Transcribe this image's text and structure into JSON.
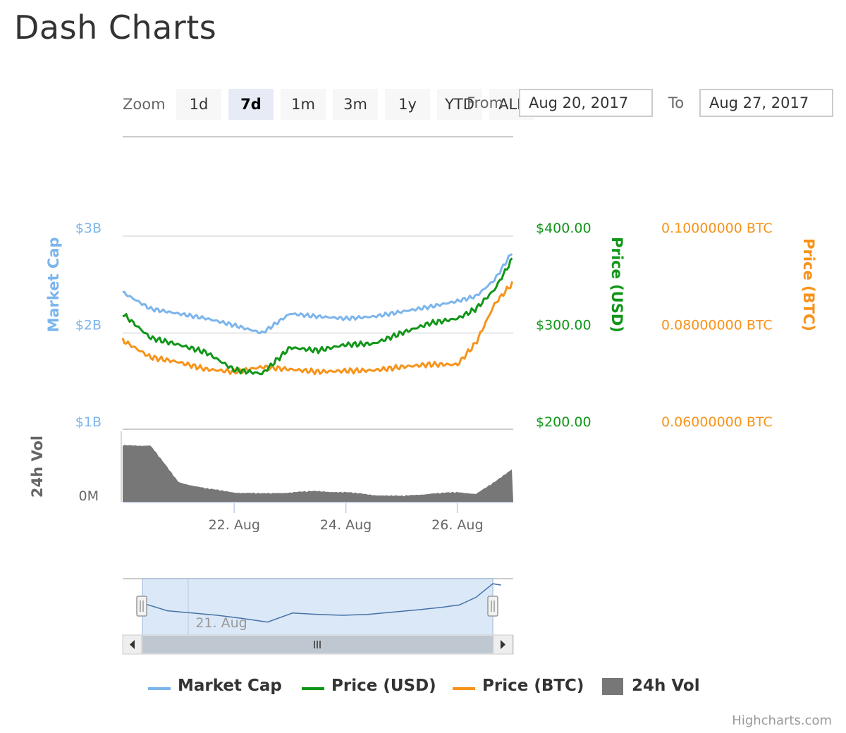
{
  "page": {
    "title": "Dash Charts"
  },
  "range_selector": {
    "zoom_label": "Zoom",
    "buttons": [
      {
        "label": "1d",
        "active": false
      },
      {
        "label": "7d",
        "active": true
      },
      {
        "label": "1m",
        "active": false
      },
      {
        "label": "3m",
        "active": false
      },
      {
        "label": "1y",
        "active": false
      },
      {
        "label": "YTD",
        "active": false
      },
      {
        "label": "ALL",
        "active": false
      }
    ],
    "from_label": "From",
    "from_value": "Aug 20, 2017",
    "to_label": "To",
    "to_value": "Aug 27, 2017"
  },
  "credits": "Highcharts.com",
  "colors": {
    "market_cap": "#7cb5ec",
    "price_usd": "#109618",
    "price_btc": "#f7931a",
    "volume": "#777777",
    "navigator_fill": "#dbe8f7",
    "navigator_line": "#4572a7"
  },
  "chart_data": {
    "type": "line",
    "x_range": [
      "2017-08-20",
      "2017-08-27"
    ],
    "x_ticks": [
      {
        "date": "2017-08-22",
        "label": "22. Aug"
      },
      {
        "date": "2017-08-24",
        "label": "24. Aug"
      },
      {
        "date": "2017-08-26",
        "label": "26. Aug"
      }
    ],
    "y_axes": [
      {
        "id": "market_cap",
        "title": "Market Cap",
        "ticks": [
          "$3B",
          "$2B",
          "$1B"
        ],
        "range": [
          1000000000,
          3000000000
        ]
      },
      {
        "id": "price_usd",
        "title": "Price (USD)",
        "ticks": [
          "$400.00",
          "$300.00",
          "$200.00"
        ],
        "range": [
          200,
          400
        ]
      },
      {
        "id": "price_btc",
        "title": "Price (BTC)",
        "ticks": [
          "0.10000000 BTC",
          "0.08000000 BTC",
          "0.06000000 BTC"
        ],
        "range": [
          0.06,
          0.1
        ]
      },
      {
        "id": "volume",
        "title": "24h Vol",
        "ticks": [
          "0M"
        ]
      }
    ],
    "series": [
      {
        "name": "Market Cap",
        "axis": "market_cap",
        "x": [
          "2017-08-20",
          "2017-08-20 12:00",
          "2017-08-21",
          "2017-08-21 12:00",
          "2017-08-22",
          "2017-08-22 12:00",
          "2017-08-23",
          "2017-08-23 12:00",
          "2017-08-24",
          "2017-08-24 12:00",
          "2017-08-25",
          "2017-08-25 12:00",
          "2017-08-26",
          "2017-08-26 08:00",
          "2017-08-26 16:00",
          "2017-08-27",
          "2017-08-27 04:00"
        ],
        "values": [
          2420000000,
          2250000000,
          2200000000,
          2150000000,
          2080000000,
          2000000000,
          2200000000,
          2170000000,
          2150000000,
          2170000000,
          2220000000,
          2270000000,
          2330000000,
          2380000000,
          2550000000,
          2850000000,
          2820000000
        ]
      },
      {
        "name": "Price (USD)",
        "axis": "price_usd",
        "x": [
          "2017-08-20",
          "2017-08-20 12:00",
          "2017-08-21",
          "2017-08-21 12:00",
          "2017-08-22",
          "2017-08-22 12:00",
          "2017-08-23",
          "2017-08-23 12:00",
          "2017-08-24",
          "2017-08-24 12:00",
          "2017-08-25",
          "2017-08-25 12:00",
          "2017-08-26",
          "2017-08-26 08:00",
          "2017-08-26 16:00",
          "2017-08-27",
          "2017-08-27 04:00"
        ],
        "values": [
          320,
          295,
          288,
          280,
          262,
          258,
          285,
          282,
          288,
          289,
          300,
          310,
          315,
          325,
          345,
          378,
          374
        ]
      },
      {
        "name": "Price (BTC)",
        "axis": "price_btc",
        "x": [
          "2017-08-20",
          "2017-08-20 12:00",
          "2017-08-21",
          "2017-08-21 12:00",
          "2017-08-22",
          "2017-08-22 12:00",
          "2017-08-23",
          "2017-08-23 12:00",
          "2017-08-24",
          "2017-08-24 12:00",
          "2017-08-25",
          "2017-08-25 12:00",
          "2017-08-26",
          "2017-08-26 08:00",
          "2017-08-26 16:00",
          "2017-08-27",
          "2017-08-27 04:00"
        ],
        "values": [
          0.0785,
          0.075,
          0.074,
          0.0725,
          0.072,
          0.073,
          0.0725,
          0.072,
          0.0722,
          0.0723,
          0.073,
          0.0735,
          0.0735,
          0.078,
          0.086,
          0.0905,
          0.0895
        ]
      },
      {
        "name": "24h Vol",
        "axis": "volume",
        "x": [
          "2017-08-20",
          "2017-08-20 12:00",
          "2017-08-21",
          "2017-08-21 12:00",
          "2017-08-22",
          "2017-08-22 12:00",
          "2017-08-23",
          "2017-08-23 12:00",
          "2017-08-24",
          "2017-08-24 12:00",
          "2017-08-25",
          "2017-08-25 12:00",
          "2017-08-26",
          "2017-08-26 08:00",
          "2017-08-26 16:00",
          "2017-08-27",
          "2017-08-27 04:00"
        ],
        "values": [
          0.88,
          0.88,
          0.3,
          0.2,
          0.14,
          0.12,
          0.14,
          0.16,
          0.14,
          0.1,
          0.08,
          0.12,
          0.14,
          0.12,
          0.3,
          0.52,
          0.62
        ]
      }
    ],
    "navigator_ticks": [
      {
        "date": "2017-08-21",
        "label": "21. Aug"
      }
    ],
    "legend": {
      "position": "bottom"
    }
  }
}
